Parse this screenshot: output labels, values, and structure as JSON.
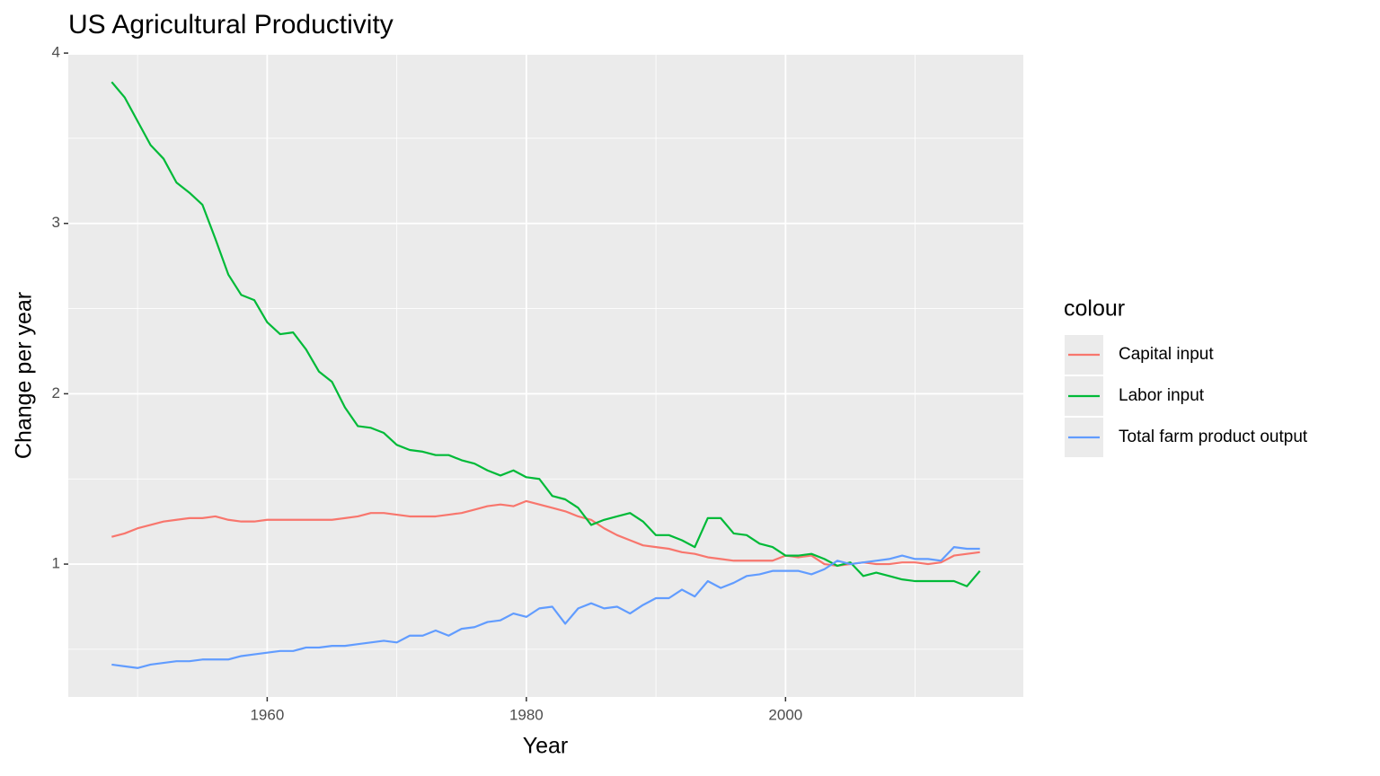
{
  "chart_data": {
    "type": "line",
    "title": "US Agricultural Productivity",
    "x_label": "Year",
    "y_label": "Change per year",
    "legend_title": "colour",
    "legend": "right",
    "grid": true,
    "x": [
      1948,
      1949,
      1950,
      1951,
      1952,
      1953,
      1954,
      1955,
      1956,
      1957,
      1958,
      1959,
      1960,
      1961,
      1962,
      1963,
      1964,
      1965,
      1966,
      1967,
      1968,
      1969,
      1970,
      1971,
      1972,
      1973,
      1974,
      1975,
      1976,
      1977,
      1978,
      1979,
      1980,
      1981,
      1982,
      1983,
      1984,
      1985,
      1986,
      1987,
      1988,
      1989,
      1990,
      1991,
      1992,
      1993,
      1994,
      1995,
      1996,
      1997,
      1998,
      1999,
      2000,
      2001,
      2002,
      2003,
      2004,
      2005,
      2006,
      2007,
      2008,
      2009,
      2010,
      2011,
      2012,
      2013,
      2014,
      2015
    ],
    "series": [
      {
        "name": "Capital input",
        "color": "#F8766D",
        "values": [
          1.16,
          1.18,
          1.21,
          1.23,
          1.25,
          1.26,
          1.27,
          1.27,
          1.28,
          1.26,
          1.25,
          1.25,
          1.26,
          1.26,
          1.26,
          1.26,
          1.26,
          1.26,
          1.27,
          1.28,
          1.3,
          1.3,
          1.29,
          1.28,
          1.28,
          1.28,
          1.29,
          1.3,
          1.32,
          1.34,
          1.35,
          1.34,
          1.37,
          1.35,
          1.33,
          1.31,
          1.28,
          1.26,
          1.21,
          1.17,
          1.14,
          1.11,
          1.1,
          1.09,
          1.07,
          1.06,
          1.04,
          1.03,
          1.02,
          1.02,
          1.02,
          1.02,
          1.05,
          1.04,
          1.05,
          1.0,
          0.99,
          1.0,
          1.01,
          1.0,
          1.0,
          1.01,
          1.01,
          1.0,
          1.01,
          1.05,
          1.06,
          1.07
        ]
      },
      {
        "name": "Labor input",
        "color": "#00BA38",
        "values": [
          3.83,
          3.74,
          3.6,
          3.46,
          3.38,
          3.24,
          3.18,
          3.11,
          2.91,
          2.7,
          2.58,
          2.55,
          2.42,
          2.35,
          2.36,
          2.26,
          2.13,
          2.07,
          1.92,
          1.81,
          1.8,
          1.77,
          1.7,
          1.67,
          1.66,
          1.64,
          1.64,
          1.61,
          1.59,
          1.55,
          1.52,
          1.55,
          1.51,
          1.5,
          1.4,
          1.38,
          1.33,
          1.23,
          1.26,
          1.28,
          1.3,
          1.25,
          1.17,
          1.17,
          1.14,
          1.1,
          1.27,
          1.27,
          1.18,
          1.17,
          1.12,
          1.1,
          1.05,
          1.05,
          1.06,
          1.03,
          0.99,
          1.01,
          0.93,
          0.95,
          0.93,
          0.91,
          0.9,
          0.9,
          0.9,
          0.9,
          0.87,
          0.96
        ]
      },
      {
        "name": "Total farm product output",
        "color": "#619CFF",
        "values": [
          0.41,
          0.4,
          0.39,
          0.41,
          0.42,
          0.43,
          0.43,
          0.44,
          0.44,
          0.44,
          0.46,
          0.47,
          0.48,
          0.49,
          0.49,
          0.51,
          0.51,
          0.52,
          0.52,
          0.53,
          0.54,
          0.55,
          0.54,
          0.58,
          0.58,
          0.61,
          0.58,
          0.62,
          0.63,
          0.66,
          0.67,
          0.71,
          0.69,
          0.74,
          0.75,
          0.65,
          0.74,
          0.77,
          0.74,
          0.75,
          0.71,
          0.76,
          0.8,
          0.8,
          0.85,
          0.81,
          0.9,
          0.86,
          0.89,
          0.93,
          0.94,
          0.96,
          0.96,
          0.96,
          0.94,
          0.97,
          1.02,
          1.0,
          1.01,
          1.02,
          1.03,
          1.05,
          1.03,
          1.03,
          1.02,
          1.1,
          1.09,
          1.09
        ]
      }
    ],
    "xlim": [
      1944.65,
      2018.35
    ],
    "xticks": [
      1960,
      1980,
      2000
    ],
    "xminor": [
      1950,
      1970,
      1990,
      2010
    ],
    "ylim": [
      0.22,
      3.99
    ],
    "yticks": [
      1,
      2,
      3,
      4
    ],
    "yminor": [
      0.5,
      1.5,
      2.5,
      3.5
    ]
  }
}
